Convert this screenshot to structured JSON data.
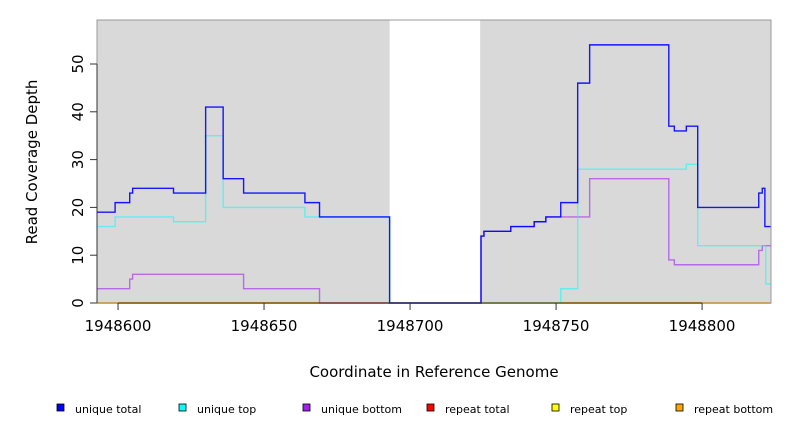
{
  "chart_data": {
    "type": "line",
    "subtype": "step",
    "title": "",
    "xlabel": "Coordinate in Reference Genome",
    "ylabel": "Read Coverage Depth",
    "xlim": [
      1948592.8,
      1948823.6
    ],
    "ylim": [
      0,
      59
    ],
    "xticks": [
      1948600,
      1948650,
      1948700,
      1948750,
      1948800
    ],
    "xtick_labels": [
      "1948600",
      "1948650",
      "1948700",
      "1948750",
      "1948800"
    ],
    "yticks": [
      0,
      10,
      20,
      30,
      40,
      50
    ],
    "ytick_labels": [
      "0",
      "10",
      "20",
      "30",
      "40",
      "50"
    ],
    "uncovered_region": [
      1948693,
      1948724
    ],
    "background_color": "#d9d9d9",
    "legend_position": "bottom",
    "series": [
      {
        "name": "repeat total",
        "color": "#ff0000",
        "steps": [
          [
            1948592.8,
            0
          ]
        ]
      },
      {
        "name": "repeat top",
        "color": "#ffff00",
        "steps": [
          [
            1948592.8,
            0
          ]
        ]
      },
      {
        "name": "repeat bottom",
        "color": "#ffa500",
        "steps": [
          [
            1948592.8,
            0
          ]
        ]
      },
      {
        "name": "unique bottom",
        "color": "#a020f0",
        "steps": [
          [
            1948592.8,
            3
          ],
          [
            1948604,
            5
          ],
          [
            1948605,
            6
          ],
          [
            1948643,
            3
          ],
          [
            1948669,
            0
          ],
          [
            1948724.3,
            14
          ],
          [
            1948725.3,
            15
          ],
          [
            1948734.5,
            16
          ],
          [
            1948742.5,
            17
          ],
          [
            1948746.5,
            18
          ],
          [
            1948761.5,
            26
          ],
          [
            1948788.6,
            9
          ],
          [
            1948790.5,
            8
          ],
          [
            1948819.4,
            11
          ],
          [
            1948820.6,
            12
          ]
        ]
      },
      {
        "name": "unique top",
        "color": "#00ffff",
        "steps": [
          [
            1948592.8,
            16
          ],
          [
            1948599,
            18
          ],
          [
            1948619,
            17
          ],
          [
            1948630,
            35
          ],
          [
            1948636,
            20
          ],
          [
            1948664,
            18
          ],
          [
            1948693,
            0
          ],
          [
            1948751.6,
            3
          ],
          [
            1948757.4,
            28
          ],
          [
            1948794.6,
            29
          ],
          [
            1948798.5,
            12
          ],
          [
            1948821.8,
            4
          ]
        ]
      },
      {
        "name": "unique total",
        "color": "#0000ff",
        "steps": [
          [
            1948592.8,
            19
          ],
          [
            1948599,
            21
          ],
          [
            1948604,
            23
          ],
          [
            1948605,
            24
          ],
          [
            1948619,
            23
          ],
          [
            1948630,
            41
          ],
          [
            1948636,
            26
          ],
          [
            1948643,
            23
          ],
          [
            1948664,
            21
          ],
          [
            1948669,
            18
          ],
          [
            1948693,
            0
          ],
          [
            1948724.3,
            14
          ],
          [
            1948725.3,
            15
          ],
          [
            1948734.5,
            16
          ],
          [
            1948742.5,
            17
          ],
          [
            1948746.5,
            18
          ],
          [
            1948751.6,
            21
          ],
          [
            1948757.4,
            46
          ],
          [
            1948761.5,
            54
          ],
          [
            1948788.6,
            37
          ],
          [
            1948790.5,
            36
          ],
          [
            1948794.6,
            37
          ],
          [
            1948798.5,
            20
          ],
          [
            1948819.4,
            23
          ],
          [
            1948820.6,
            24
          ],
          [
            1948821.5,
            16
          ]
        ]
      }
    ],
    "legend": [
      {
        "label": "unique total",
        "color": "#0000ff"
      },
      {
        "label": "unique top",
        "color": "#00ffff"
      },
      {
        "label": "unique bottom",
        "color": "#a020f0"
      },
      {
        "label": "repeat total",
        "color": "#ff0000"
      },
      {
        "label": "repeat top",
        "color": "#ffff00"
      },
      {
        "label": "repeat bottom",
        "color": "#ffa500"
      }
    ]
  }
}
